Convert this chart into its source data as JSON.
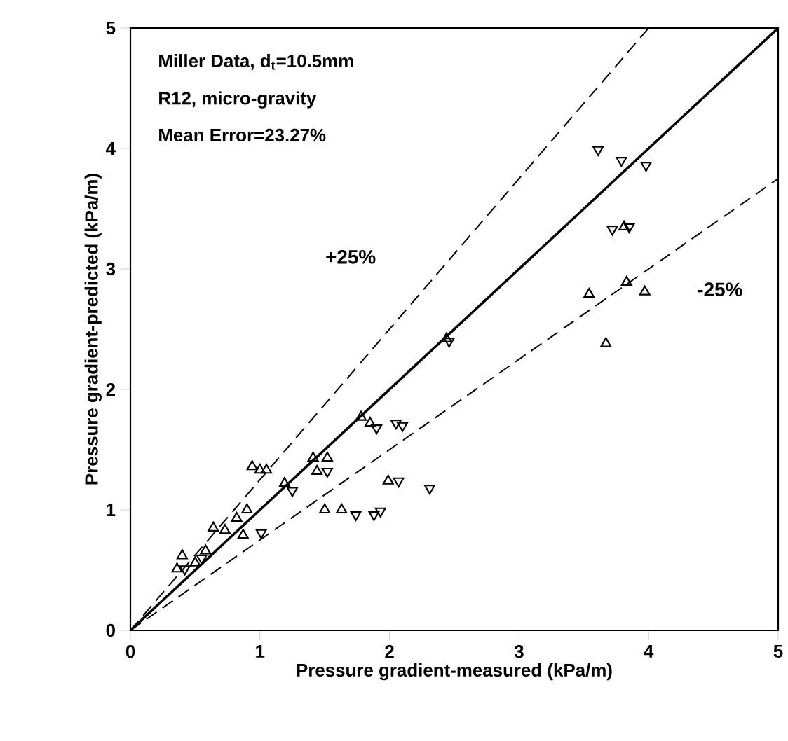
{
  "chart_data": {
    "type": "scatter",
    "xlabel": "Pressure gradient-measured (kPa/m)",
    "ylabel": "Pressure gradient-predicted (kPa/m)",
    "xlim": [
      0,
      5
    ],
    "ylim": [
      0,
      5
    ],
    "xticks": [
      0,
      1,
      2,
      3,
      4,
      5
    ],
    "yticks": [
      0,
      1,
      2,
      3,
      4,
      5
    ],
    "grid": false,
    "annotations": [
      "Miller Data, d$_{t}$=10.5mm",
      "R12, micro-gravity",
      "Mean Error=23.27%",
      {
        "text": "+25%",
        "x": 1.7,
        "y": 3.1
      },
      {
        "text": "-25%",
        "x": 4.55,
        "y": 2.83
      }
    ],
    "series": [
      {
        "marker": "triangle",
        "color": "#000000",
        "x": [
          0.94,
          1.0,
          1.05,
          1.41,
          1.52,
          1.5,
          1.63,
          0.9,
          0.82,
          0.73,
          0.64,
          0.87,
          0.4,
          0.5,
          0.58,
          0.36,
          1.99,
          1.78,
          1.85,
          2.44,
          3.54,
          3.83,
          3.97,
          3.67,
          3.81,
          1.19,
          1.44
        ],
        "values": [
          1.36,
          1.33,
          1.33,
          1.43,
          1.43,
          1.0,
          1.0,
          1.0,
          0.93,
          0.83,
          0.85,
          0.79,
          0.62,
          0.56,
          0.66,
          0.51,
          1.24,
          1.77,
          1.72,
          2.42,
          2.79,
          2.89,
          2.81,
          2.38,
          3.35,
          1.22,
          1.32
        ]
      },
      {
        "marker": "triangle_down",
        "color": "#000000",
        "x": [
          1.25,
          1.74,
          1.88,
          1.01,
          0.42,
          2.07,
          2.31,
          1.93,
          1.9,
          2.05,
          2.1,
          2.46,
          3.72,
          3.85,
          3.61,
          3.79,
          3.98,
          1.52,
          0.55
        ],
        "values": [
          1.16,
          0.96,
          0.96,
          0.81,
          0.51,
          1.24,
          1.18,
          0.99,
          1.68,
          1.72,
          1.7,
          2.4,
          3.33,
          3.35,
          3.99,
          3.9,
          3.86,
          1.32,
          0.6
        ]
      },
      {
        "type": "line",
        "line_style": "solid",
        "marker": "none",
        "color": "#000000",
        "x": [
          0,
          5
        ],
        "values": [
          0,
          5
        ]
      },
      {
        "type": "line",
        "line_style": "dashed",
        "marker": "none",
        "color": "#000000",
        "x": [
          0,
          4
        ],
        "values": [
          0,
          5
        ]
      },
      {
        "type": "line",
        "line_style": "dashed",
        "marker": "none",
        "color": "#000000",
        "x": [
          0,
          5
        ],
        "values": [
          0,
          3.75
        ]
      }
    ]
  }
}
